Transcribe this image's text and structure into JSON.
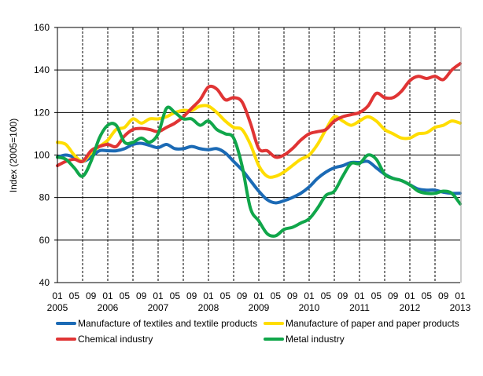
{
  "chart_data": {
    "type": "line",
    "title": "",
    "ylabel": "Index (2005=100)",
    "xlabel": "",
    "ylim": [
      40,
      160
    ],
    "yticks": [
      40,
      60,
      80,
      100,
      120,
      140,
      160
    ],
    "x_start": "2005-01",
    "x_end": "2013-01",
    "x_step_months": 2,
    "month_tick_labels": [
      "01",
      "05",
      "09",
      "01",
      "05",
      "09",
      "01",
      "05",
      "09",
      "01",
      "05",
      "09",
      "01",
      "05",
      "09",
      "01",
      "05",
      "09",
      "01",
      "05",
      "09",
      "01",
      "05",
      "09",
      "01"
    ],
    "year_tick_labels": [
      "2005",
      "2006",
      "2007",
      "2008",
      "2009",
      "2010",
      "2011",
      "2012",
      "2013"
    ],
    "grid": "horizontal solid, vertical dashed",
    "legend_placement": "bottom",
    "series": [
      {
        "name": "Manufacture of textiles and textile products",
        "color": "#1b6ab5",
        "values": [
          99,
          100,
          99,
          97,
          99,
          102,
          102,
          102,
          103,
          105,
          105.5,
          104.5,
          103.5,
          105,
          103,
          103,
          104,
          103,
          102.5,
          103,
          101,
          97,
          93,
          88,
          83,
          79,
          77.5,
          78.5,
          80,
          82,
          85,
          89,
          92,
          94,
          95,
          96.5,
          96.5,
          97,
          94,
          91,
          89,
          88,
          86,
          84,
          83.5,
          83.5,
          82.5,
          82,
          82
        ]
      },
      {
        "name": "Manufacture of paper and paper products",
        "color": "#ffdd00",
        "values": [
          106,
          105,
          100,
          97,
          101,
          104,
          107,
          112,
          113,
          117,
          115,
          117,
          117,
          118,
          120,
          121,
          121,
          123,
          123,
          120,
          116,
          113,
          112,
          105,
          95,
          90,
          90,
          92,
          95,
          98,
          100,
          105,
          112,
          118,
          116,
          114,
          116,
          118,
          116,
          112,
          110,
          108,
          108,
          110,
          110.5,
          113,
          114,
          116,
          115
        ]
      },
      {
        "name": "Chemical industry",
        "color": "#e03434",
        "values": [
          95,
          97,
          98,
          97,
          102,
          104,
          105,
          104,
          109,
          112,
          112.5,
          112,
          111,
          113,
          115,
          118,
          122,
          126,
          132,
          131,
          126,
          127,
          125,
          115,
          103,
          102,
          99,
          100,
          103,
          107,
          110,
          111,
          112,
          116,
          118,
          119,
          120,
          123,
          129,
          127,
          127,
          130,
          135,
          137,
          136,
          137,
          135.5,
          140,
          143
        ]
      },
      {
        "name": "Metal industry",
        "color": "#10a64a",
        "values": [
          99,
          98,
          94,
          90,
          97,
          108,
          114,
          114,
          106,
          106,
          108,
          106,
          110,
          122,
          120,
          117,
          117,
          114,
          116,
          112,
          110,
          108,
          95,
          75,
          69,
          63,
          62,
          65,
          66,
          68,
          70,
          75,
          81,
          83,
          90,
          96,
          96,
          100,
          98,
          91,
          89,
          88,
          86,
          83,
          82,
          82,
          83,
          82,
          77
        ]
      }
    ]
  }
}
